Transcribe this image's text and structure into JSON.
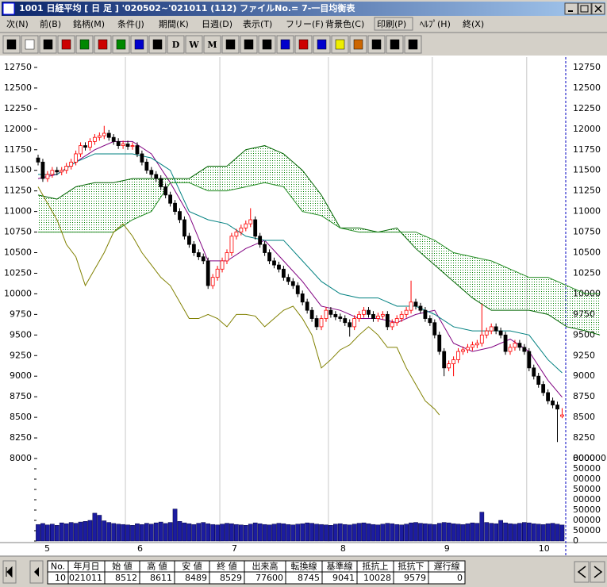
{
  "window": {
    "title": "1001 日経平均 [ 日 足 ]  '020502~'021011 (112)  ファイルNo.= 7-一目均衡表",
    "menu": [
      "次(N)",
      "前(B)",
      "銘柄(M)",
      "条件(J)",
      "期間(K)",
      "日週(D)",
      "表示(T)",
      "フリー(F)",
      "背景色(C)",
      "印刷(P)",
      "ﾍﾙﾌﾟ(H)",
      "終(X)"
    ],
    "toolbar": [
      "D",
      "W",
      "M"
    ]
  },
  "chart_data": {
    "type": "candlestick",
    "up_color": "#ff0000",
    "down_color": "#000000",
    "ylim": [
      8000,
      12875
    ],
    "yticks": [
      8000,
      8250,
      8500,
      8750,
      9000,
      9250,
      9500,
      9750,
      10000,
      10250,
      10500,
      10750,
      11000,
      11250,
      11500,
      11750,
      12000,
      12250,
      12500,
      12750
    ],
    "candles": [
      [
        11650,
        11690,
        11560,
        11600
      ],
      [
        11600,
        11640,
        11360,
        11400
      ],
      [
        11400,
        11490,
        11360,
        11450
      ],
      [
        11450,
        11540,
        11410,
        11500
      ],
      [
        11500,
        11540,
        11440,
        11480
      ],
      [
        11480,
        11540,
        11440,
        11500
      ],
      [
        11500,
        11590,
        11460,
        11550
      ],
      [
        11550,
        11640,
        11510,
        11600
      ],
      [
        11600,
        11740,
        11560,
        11700
      ],
      [
        11700,
        11840,
        11660,
        11800
      ],
      [
        11800,
        11840,
        11740,
        11780
      ],
      [
        11780,
        11890,
        11740,
        11850
      ],
      [
        11850,
        11940,
        11810,
        11900
      ],
      [
        11900,
        11960,
        11860,
        11920
      ],
      [
        11920,
        12040,
        11880,
        11950
      ],
      [
        11950,
        11990,
        11860,
        11900
      ],
      [
        11900,
        11940,
        11810,
        11850
      ],
      [
        11850,
        11890,
        11760,
        11800
      ],
      [
        11800,
        11860,
        11760,
        11820
      ],
      [
        11820,
        11860,
        11750,
        11790
      ],
      [
        11790,
        11840,
        11750,
        11800
      ],
      [
        11800,
        11840,
        11660,
        11700
      ],
      [
        11700,
        11740,
        11560,
        11600
      ],
      [
        11600,
        11640,
        11460,
        11500
      ],
      [
        11500,
        11540,
        11410,
        11450
      ],
      [
        11450,
        11490,
        11360,
        11400
      ],
      [
        11400,
        11440,
        11260,
        11300
      ],
      [
        11300,
        11340,
        11160,
        11200
      ],
      [
        11200,
        11240,
        11060,
        11100
      ],
      [
        11100,
        11140,
        10960,
        11000
      ],
      [
        11000,
        11040,
        10860,
        10900
      ],
      [
        10900,
        10940,
        10660,
        10700
      ],
      [
        10700,
        10740,
        10560,
        10600
      ],
      [
        10600,
        10640,
        10460,
        10500
      ],
      [
        10500,
        10540,
        10410,
        10450
      ],
      [
        10450,
        10490,
        10360,
        10400
      ],
      [
        10400,
        10440,
        10060,
        10100
      ],
      [
        10100,
        10240,
        10060,
        10200
      ],
      [
        10200,
        10340,
        10160,
        10300
      ],
      [
        10300,
        10440,
        10260,
        10400
      ],
      [
        10400,
        10540,
        10360,
        10500
      ],
      [
        10500,
        10740,
        10460,
        10700
      ],
      [
        10700,
        10790,
        10660,
        10750
      ],
      [
        10750,
        10840,
        10710,
        10800
      ],
      [
        10800,
        10890,
        10760,
        10850
      ],
      [
        10850,
        11040,
        10810,
        10900
      ],
      [
        10900,
        10940,
        10660,
        10700
      ],
      [
        10700,
        10740,
        10560,
        10600
      ],
      [
        10600,
        10640,
        10460,
        10500
      ],
      [
        10500,
        10540,
        10360,
        10400
      ],
      [
        10400,
        10440,
        10310,
        10350
      ],
      [
        10350,
        10390,
        10260,
        10300
      ],
      [
        10300,
        10340,
        10160,
        10200
      ],
      [
        10200,
        10240,
        10110,
        10150
      ],
      [
        10150,
        10190,
        10060,
        10100
      ],
      [
        10100,
        10140,
        9960,
        10000
      ],
      [
        10000,
        10040,
        9860,
        9900
      ],
      [
        9900,
        9940,
        9760,
        9800
      ],
      [
        9800,
        9840,
        9660,
        9700
      ],
      [
        9700,
        9740,
        9560,
        9600
      ],
      [
        9600,
        9740,
        9560,
        9700
      ],
      [
        9700,
        9840,
        9660,
        9800
      ],
      [
        9800,
        9840,
        9710,
        9750
      ],
      [
        9750,
        9790,
        9680,
        9720
      ],
      [
        9720,
        9760,
        9660,
        9700
      ],
      [
        9700,
        9740,
        9610,
        9650
      ],
      [
        9650,
        9690,
        9480,
        9600
      ],
      [
        9600,
        9740,
        9560,
        9700
      ],
      [
        9700,
        9790,
        9660,
        9750
      ],
      [
        9750,
        9840,
        9710,
        9800
      ],
      [
        9800,
        9840,
        9710,
        9750
      ],
      [
        9750,
        9790,
        9660,
        9700
      ],
      [
        9700,
        9770,
        9660,
        9730
      ],
      [
        9730,
        9790,
        9690,
        9750
      ],
      [
        9750,
        9790,
        9560,
        9600
      ],
      [
        9600,
        9690,
        9560,
        9650
      ],
      [
        9650,
        9740,
        9610,
        9700
      ],
      [
        9700,
        9790,
        9660,
        9750
      ],
      [
        9750,
        9840,
        9710,
        9800
      ],
      [
        9800,
        10160,
        9760,
        9900
      ],
      [
        9900,
        9940,
        9810,
        9850
      ],
      [
        9850,
        9890,
        9760,
        9800
      ],
      [
        9800,
        9840,
        9660,
        9700
      ],
      [
        9700,
        9740,
        9610,
        9650
      ],
      [
        9650,
        9690,
        9460,
        9500
      ],
      [
        9500,
        9540,
        9260,
        9300
      ],
      [
        9300,
        9340,
        9000,
        9100
      ],
      [
        9100,
        9190,
        9060,
        9150
      ],
      [
        9150,
        9240,
        9000,
        9200
      ],
      [
        9200,
        9340,
        9160,
        9300
      ],
      [
        9300,
        9360,
        9260,
        9320
      ],
      [
        9320,
        9390,
        9280,
        9350
      ],
      [
        9350,
        9420,
        9310,
        9380
      ],
      [
        9380,
        9440,
        9340,
        9400
      ],
      [
        9400,
        9880,
        9360,
        9500
      ],
      [
        9500,
        9590,
        9460,
        9550
      ],
      [
        9550,
        9640,
        9510,
        9600
      ],
      [
        9600,
        9640,
        9510,
        9550
      ],
      [
        9550,
        9590,
        9460,
        9500
      ],
      [
        9500,
        9540,
        9260,
        9300
      ],
      [
        9300,
        9390,
        9260,
        9350
      ],
      [
        9350,
        9440,
        9310,
        9400
      ],
      [
        9400,
        9440,
        9310,
        9350
      ],
      [
        9350,
        9390,
        9260,
        9300
      ],
      [
        9300,
        9340,
        9060,
        9100
      ],
      [
        9100,
        9140,
        8960,
        9000
      ],
      [
        9000,
        9040,
        8860,
        8900
      ],
      [
        8900,
        8940,
        8760,
        8800
      ],
      [
        8800,
        8840,
        8660,
        8700
      ],
      [
        8700,
        8740,
        8610,
        8650
      ],
      [
        8650,
        8690,
        8200,
        8600
      ],
      [
        8512,
        8611,
        8489,
        8529
      ]
    ],
    "lines": [
      {
        "color": "#800080",
        "x": [
          0,
          4,
          8,
          12,
          16,
          20,
          24,
          28,
          32,
          36,
          40,
          44,
          48,
          52,
          56,
          60,
          64,
          68,
          72,
          76,
          80,
          84,
          88,
          92,
          96,
          100,
          104,
          108,
          111
        ],
        "values": [
          11400,
          11450,
          11600,
          11750,
          11850,
          11850,
          11700,
          11350,
          10950,
          10400,
          10400,
          10550,
          10650,
          10400,
          10150,
          9850,
          9800,
          9700,
          9700,
          9650,
          9750,
          9800,
          9400,
          9300,
          9350,
          9450,
          9300,
          8950,
          8745
        ]
      },
      {
        "color": "#008080",
        "x": [
          0,
          4,
          8,
          12,
          16,
          20,
          24,
          28,
          32,
          36,
          40,
          44,
          48,
          52,
          56,
          60,
          64,
          68,
          72,
          76,
          80,
          84,
          88,
          92,
          96,
          100,
          104,
          108,
          111
        ],
        "values": [
          11450,
          11450,
          11600,
          11700,
          11700,
          11700,
          11650,
          11500,
          11000,
          10900,
          10850,
          10700,
          10650,
          10650,
          10400,
          10150,
          10000,
          9950,
          9950,
          9850,
          9850,
          9750,
          9600,
          9550,
          9550,
          9550,
          9500,
          9200,
          9041
        ]
      },
      {
        "color": "#006400",
        "x": [
          0,
          4,
          8,
          12,
          16,
          20,
          24,
          28,
          32,
          36,
          40,
          44,
          48,
          52,
          56,
          60,
          64,
          68,
          72,
          76,
          80,
          84,
          88,
          92,
          96,
          100,
          104,
          108,
          112,
          116,
          119
        ],
        "values": [
          11200,
          11150,
          11300,
          11350,
          11350,
          11400,
          11400,
          11400,
          11400,
          11550,
          11550,
          11750,
          11800,
          11700,
          11500,
          11200,
          10800,
          10800,
          10750,
          10800,
          10550,
          10350,
          10150,
          9950,
          9800,
          9800,
          9800,
          9750,
          9600,
          9550,
          9500
        ]
      },
      {
        "color": "#228b22",
        "x": [
          0,
          4,
          8,
          12,
          16,
          20,
          24,
          28,
          32,
          36,
          40,
          44,
          48,
          52,
          56,
          60,
          64,
          68,
          72,
          76,
          80,
          84,
          88,
          92,
          96,
          100,
          104,
          108,
          112,
          116,
          119
        ],
        "values": [
          10750,
          10750,
          10750,
          10750,
          10750,
          10900,
          11000,
          11350,
          11350,
          11250,
          11250,
          11300,
          11350,
          11300,
          11000,
          10950,
          10800,
          10750,
          10750,
          10750,
          10750,
          10650,
          10500,
          10450,
          10400,
          10300,
          10200,
          10200,
          10100,
          10000,
          10000
        ]
      },
      {
        "color": "#808000",
        "x": [
          0,
          2,
          4,
          6,
          8,
          10,
          12,
          14,
          16,
          18,
          20,
          22,
          24,
          26,
          28,
          30,
          32,
          34,
          36,
          38,
          40,
          42,
          44,
          46,
          48,
          50,
          52,
          54,
          56,
          58,
          60,
          62,
          64,
          66,
          68,
          70,
          72,
          74,
          76,
          78,
          80,
          82,
          84,
          85
        ],
        "values": [
          11300,
          11100,
          10900,
          10600,
          10450,
          10100,
          10300,
          10500,
          10750,
          10850,
          10700,
          10500,
          10350,
          10200,
          10100,
          9900,
          9700,
          9700,
          9750,
          9700,
          9600,
          9750,
          9750,
          9730,
          9600,
          9700,
          9800,
          9850,
          9700,
          9500,
          9100,
          9200,
          9320,
          9380,
          9500,
          9600,
          9500,
          9350,
          9350,
          9100,
          8900,
          8700,
          8600,
          8529
        ]
      }
    ],
    "cloud_color": "#008000",
    "volume": {
      "color": "#1c1ca0",
      "ylim": [
        0,
        400000
      ],
      "yticks": [
        {
          "value": 400000,
          "label": "000000"
        },
        {
          "value": 350000,
          "label": "50000"
        },
        {
          "value": 300000,
          "label": "00000"
        },
        {
          "value": 250000,
          "label": "50000"
        },
        {
          "value": 200000,
          "label": "00000"
        },
        {
          "value": 150000,
          "label": "50000"
        },
        {
          "value": 100000,
          "label": "00000"
        },
        {
          "value": 50000,
          "label": "50000"
        },
        0
      ],
      "values": [
        80000,
        85000,
        78000,
        82000,
        76000,
        88000,
        84000,
        90000,
        86000,
        92000,
        95000,
        100000,
        135000,
        125000,
        98000,
        90000,
        85000,
        82000,
        80000,
        78000,
        76000,
        84000,
        80000,
        86000,
        82000,
        88000,
        92000,
        85000,
        90000,
        155000,
        95000,
        88000,
        84000,
        80000,
        86000,
        90000,
        84000,
        80000,
        78000,
        82000,
        86000,
        84000,
        80000,
        78000,
        76000,
        82000,
        88000,
        84000,
        80000,
        78000,
        82000,
        86000,
        84000,
        80000,
        78000,
        82000,
        84000,
        88000,
        86000,
        82000,
        80000,
        78000,
        76000,
        82000,
        84000,
        80000,
        78000,
        82000,
        86000,
        88000,
        84000,
        80000,
        78000,
        82000,
        86000,
        84000,
        80000,
        78000,
        82000,
        88000,
        90000,
        86000,
        84000,
        82000,
        80000,
        86000,
        90000,
        88000,
        84000,
        82000,
        80000,
        84000,
        88000,
        86000,
        140000,
        90000,
        86000,
        84000,
        100000,
        88000,
        84000,
        82000,
        86000,
        90000,
        88000,
        84000,
        82000,
        80000,
        84000,
        86000,
        82000,
        77600
      ]
    },
    "months": {
      "labels": [
        "5",
        "6",
        "7",
        "8",
        "9",
        "10"
      ],
      "index": [
        0,
        19,
        39,
        62,
        84,
        104
      ]
    }
  },
  "table": {
    "headers": [
      "No.",
      "年月日",
      "始 値",
      "高 値",
      "安 値",
      "終 値",
      "出来高",
      "転換線",
      "基準線",
      "抵抗上",
      "抵抗下",
      "遅行線"
    ],
    "rows": [
      [
        "10",
        "021011",
        "8512",
        "8611",
        "8489",
        "8529",
        "77600",
        "8745",
        "9041",
        "10028",
        "9579",
        "0"
      ]
    ]
  }
}
